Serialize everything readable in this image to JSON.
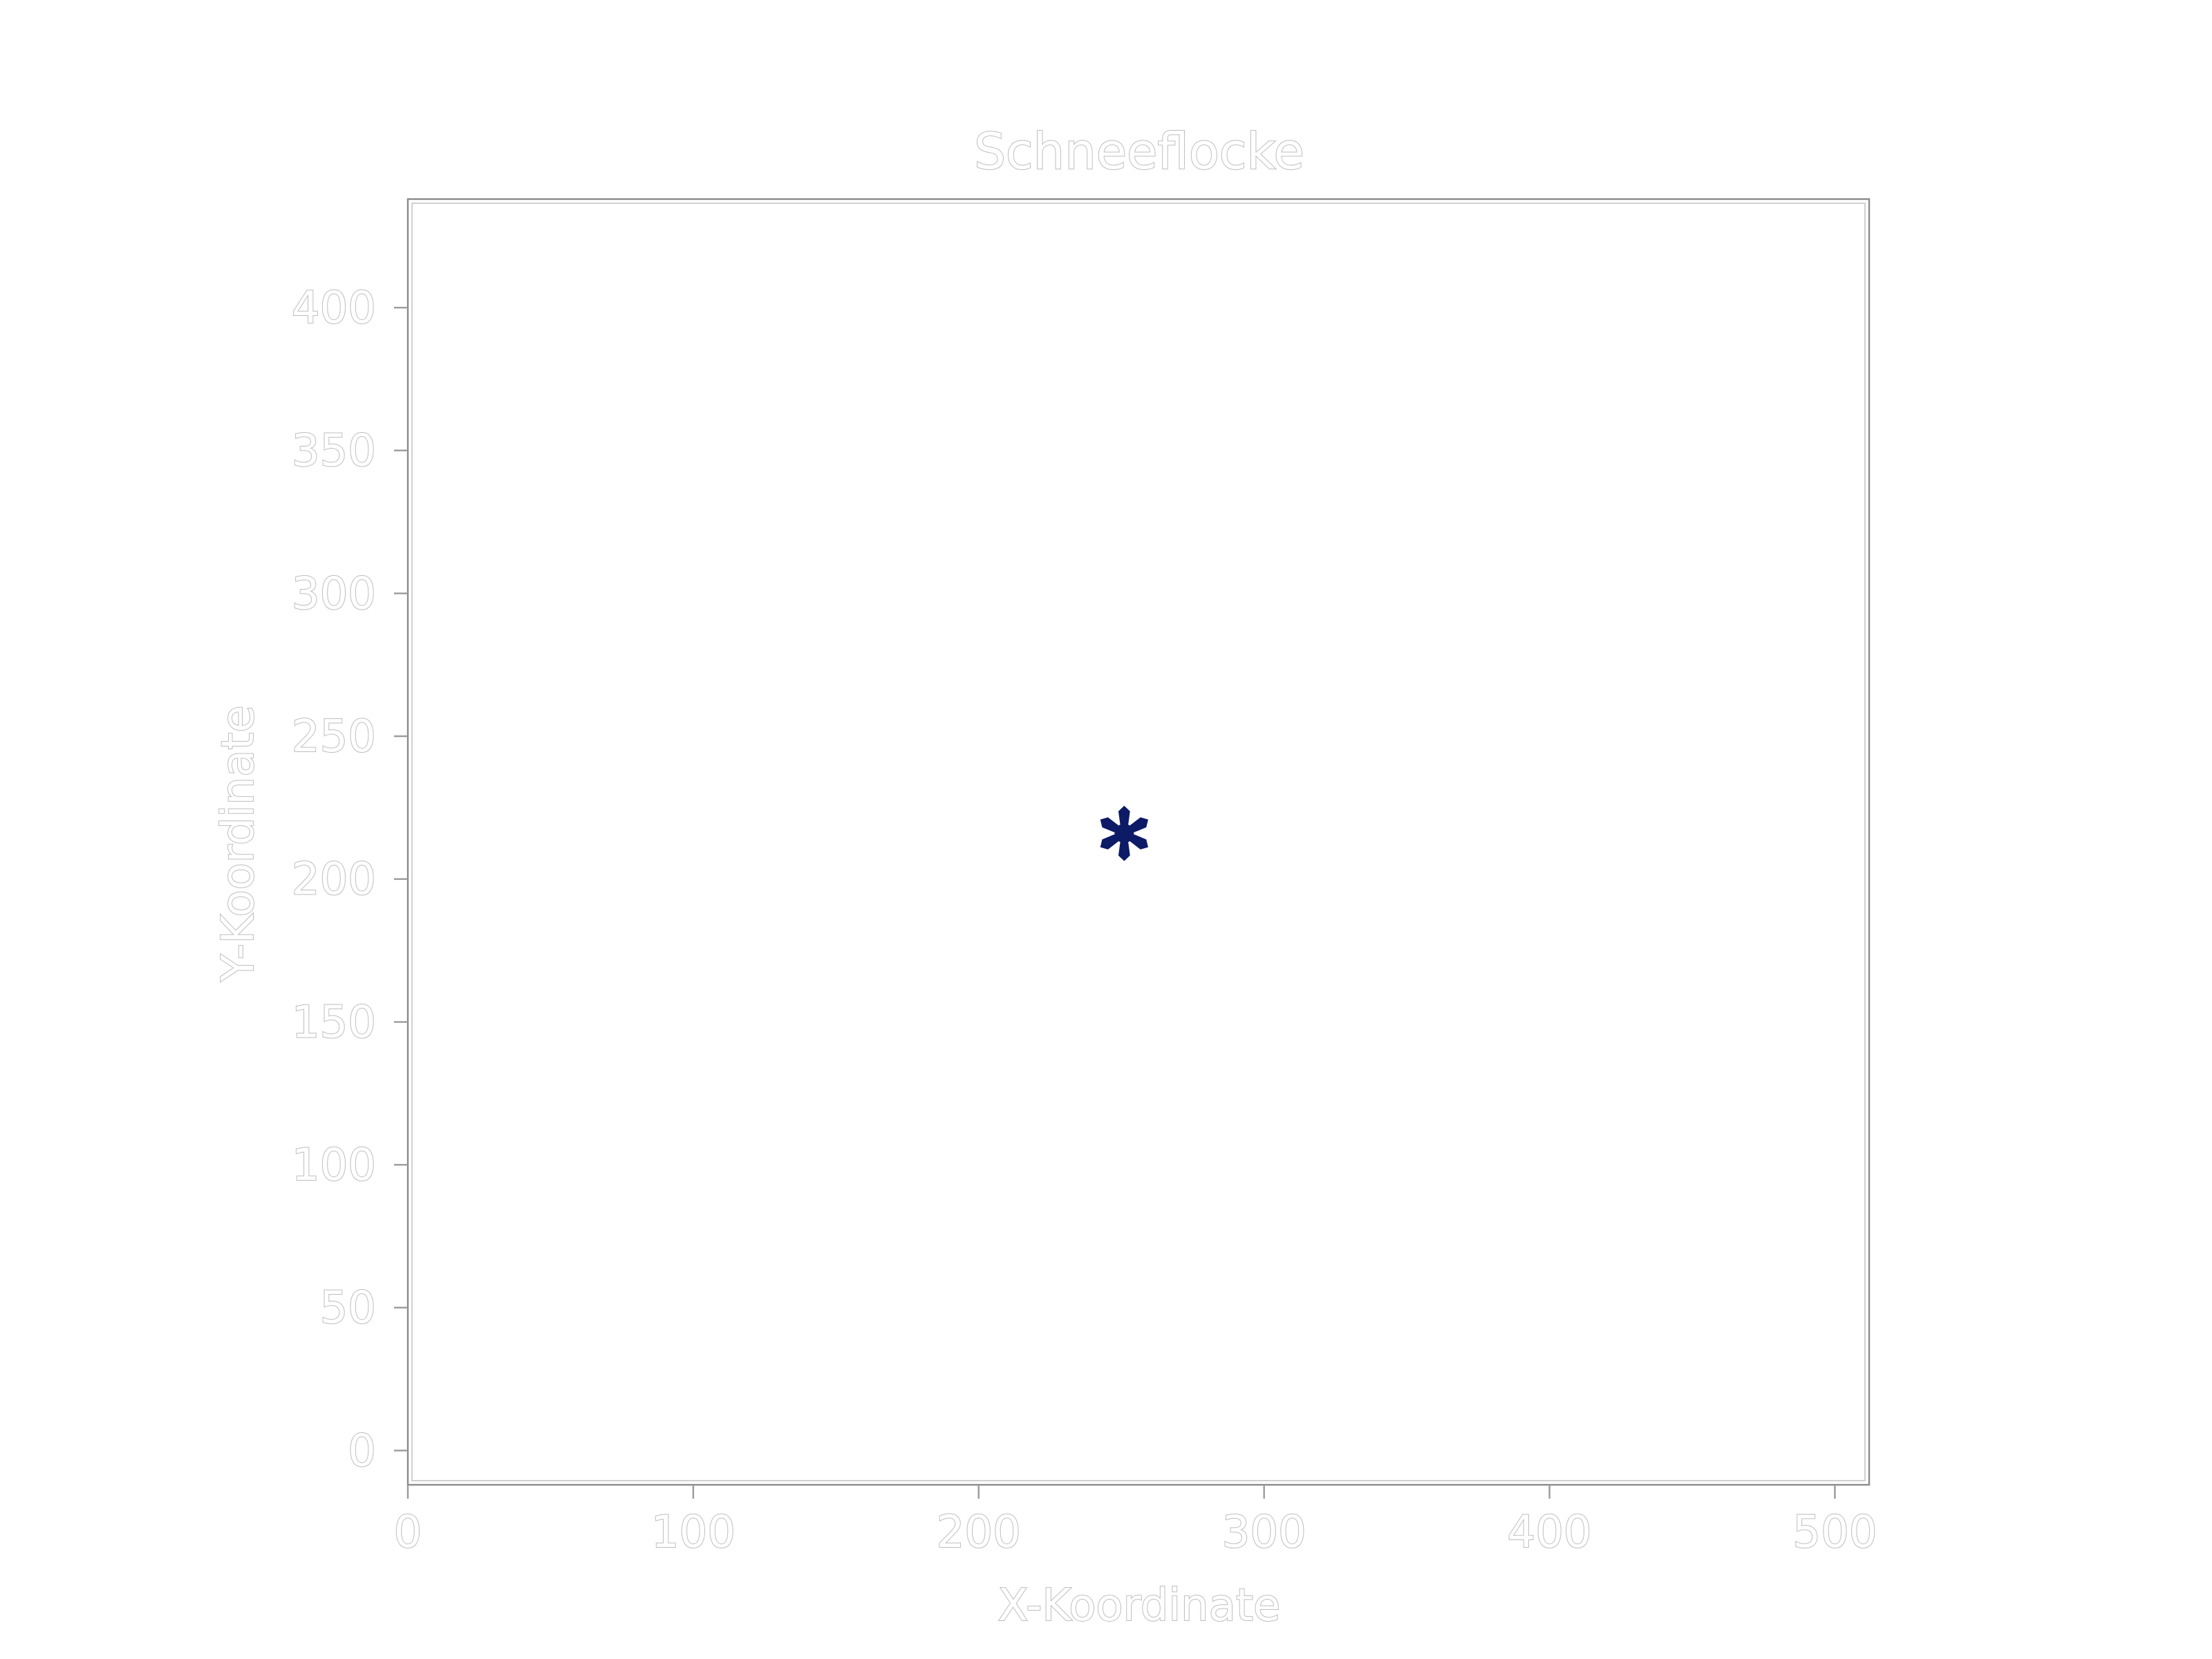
{
  "chart_data": {
    "type": "scatter",
    "title": "Schneeflocke",
    "xlabel": "X-Koordinate",
    "ylabel": "Y-Koordinate",
    "xlim": [
      0,
      512
    ],
    "ylim": [
      -12,
      438
    ],
    "xticks": [
      0,
      100,
      200,
      300,
      400,
      500
    ],
    "yticks": [
      0,
      50,
      100,
      150,
      200,
      250,
      300,
      350,
      400
    ],
    "grid": false,
    "series": [
      {
        "marker": "snowflake-icon",
        "color": "#0d1a66",
        "points": [
          {
            "x": 251,
            "y": 216,
            "size": 20
          }
        ]
      }
    ]
  }
}
